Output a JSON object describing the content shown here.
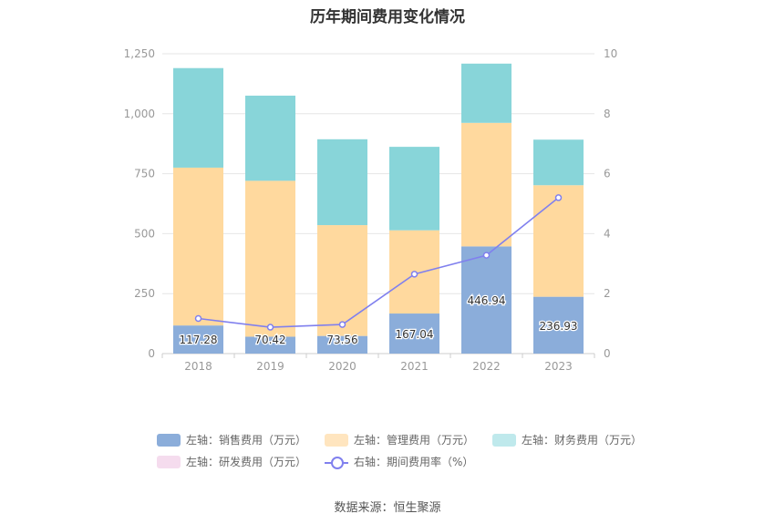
{
  "title": "历年期间费用变化情况",
  "source": "数据来源：恒生聚源",
  "chart_data": {
    "type": "bar",
    "stacked": true,
    "categories": [
      "2018",
      "2019",
      "2020",
      "2021",
      "2022",
      "2023"
    ],
    "left_axis": {
      "ylim": [
        0,
        1250
      ],
      "ticks": [
        "0",
        "250",
        "500",
        "750",
        "1,000",
        "1,250"
      ]
    },
    "right_axis": {
      "ylim": [
        0,
        10
      ],
      "ticks": [
        "0",
        "2",
        "4",
        "6",
        "8",
        "10"
      ]
    },
    "series": [
      {
        "name": "左轴：销售费用（万元）",
        "color": "#8badda",
        "values": [
          117.28,
          70.42,
          73.56,
          167.04,
          446.94,
          236.93
        ],
        "labels": [
          "117.28",
          "70.42",
          "73.56",
          "167.04",
          "446.94",
          "236.93"
        ]
      },
      {
        "name": "左轴：管理费用（万元）",
        "color": "#ffd99e",
        "values": [
          658,
          650,
          462,
          347,
          515,
          465
        ]
      },
      {
        "name": "左轴：财务费用（万元）",
        "color": "#88d5d9",
        "values": [
          415,
          355,
          358,
          348,
          247,
          190
        ]
      },
      {
        "name": "左轴：研发费用（万元）",
        "color": "#f5dcee",
        "values": [
          0,
          0,
          0,
          0,
          0,
          0
        ]
      }
    ],
    "line_series": {
      "name": "右轴：期间费用率（%）",
      "color": "#8080ee",
      "axis": "right",
      "values": [
        1.17,
        0.88,
        0.97,
        2.65,
        3.28,
        5.2
      ]
    },
    "grid": true,
    "legend_position": "bottom"
  }
}
